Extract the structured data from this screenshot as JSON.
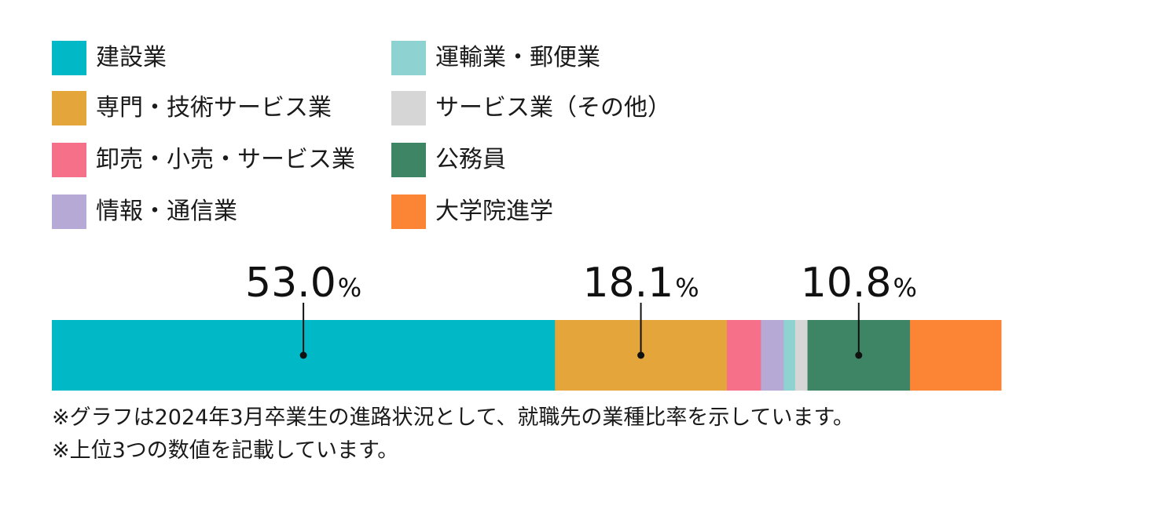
{
  "chart_data": {
    "type": "bar",
    "orientation": "horizontal-stacked-100",
    "title": "",
    "series": [
      {
        "name": "建設業",
        "value": 53.0,
        "color": "#00b8c6"
      },
      {
        "name": "専門・技術サービス業",
        "value": 18.1,
        "color": "#e4a53a"
      },
      {
        "name": "卸売・小売・サービス業",
        "value": 3.6,
        "color": "#f7708a"
      },
      {
        "name": "情報・通信業",
        "value": 2.4,
        "color": "#b7a9d6"
      },
      {
        "name": "運輸業・郵便業",
        "value": 1.2,
        "color": "#8ed3d2"
      },
      {
        "name": "サービス業（その他）",
        "value": 1.3,
        "color": "#d6d6d6"
      },
      {
        "name": "公務員",
        "value": 10.8,
        "color": "#3e8565"
      },
      {
        "name": "大学院進学",
        "value": 9.6,
        "color": "#fb8535"
      }
    ],
    "data_labels": [
      {
        "series": "建設業",
        "number": "53.0",
        "unit": "%"
      },
      {
        "series": "専門・技術サービス業",
        "number": "18.1",
        "unit": "%"
      },
      {
        "series": "公務員",
        "number": "10.8",
        "unit": "%"
      }
    ],
    "legend_position": "top-left",
    "legend_columns": 2,
    "grid": false
  },
  "notes": [
    "※グラフは2024年3月卒業生の進路状況として、就職先の業種比率を示しています。",
    "※上位3つの数値を記載しています。"
  ]
}
